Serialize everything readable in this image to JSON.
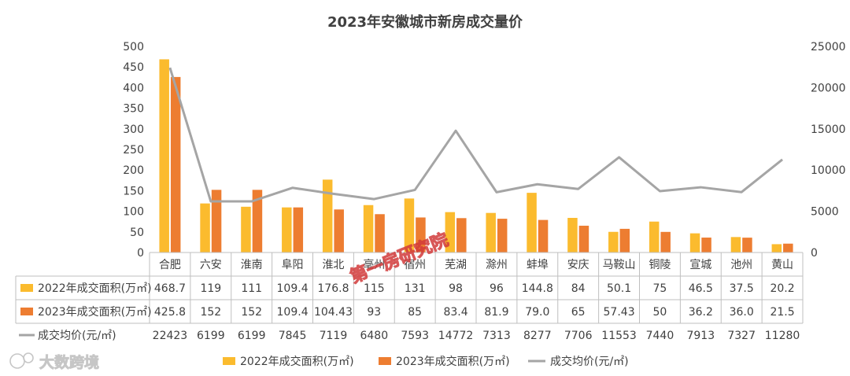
{
  "chart_data": {
    "type": "bar",
    "title": "2023年安徽城市新房成交量价",
    "categories": [
      "合肥",
      "六安",
      "淮南",
      "阜阳",
      "淮北",
      "亳州",
      "宿州",
      "芜湖",
      "滁州",
      "蚌埠",
      "安庆",
      "马鞍山",
      "铜陵",
      "宣城",
      "池州",
      "黄山"
    ],
    "y_left": {
      "ylim": [
        0,
        500
      ],
      "ticks": [
        "0",
        "50",
        "100",
        "150",
        "200",
        "250",
        "300",
        "350",
        "400",
        "450",
        "500"
      ]
    },
    "y_right": {
      "ylim": [
        0,
        25000
      ],
      "ticks": [
        "0",
        "5000",
        "10000",
        "15000",
        "20000",
        "25000"
      ]
    },
    "legend_position": "bottom",
    "grid": false,
    "series": [
      {
        "name": "2022年成交面积(万㎡)",
        "type": "bar",
        "axis": "left",
        "color": "#FBBB2E",
        "values": [
          468.7,
          119,
          111,
          109.4,
          176.8,
          115,
          131,
          98,
          96,
          144.8,
          84,
          50.1,
          75,
          46.5,
          37.5,
          20.2
        ],
        "labels": [
          "468.7",
          "119",
          "111",
          "109.4",
          "176.8",
          "115",
          "131",
          "98",
          "96",
          "144.8",
          "84",
          "50.1",
          "75",
          "46.5",
          "37.5",
          "20.2"
        ]
      },
      {
        "name": "2023年成交面积(万㎡)",
        "type": "bar",
        "axis": "left",
        "color": "#ED7D31",
        "values": [
          425.8,
          152,
          152,
          109.4,
          104.43,
          93,
          85,
          83.4,
          81.9,
          79.0,
          65,
          57.43,
          50,
          36.2,
          36.0,
          21.5
        ],
        "labels": [
          "425.8",
          "152",
          "152",
          "109.4",
          "104.43",
          "93",
          "85",
          "83.4",
          "81.9",
          "79.0",
          "65",
          "57.43",
          "50",
          "36.2",
          "36.0",
          "21.5"
        ]
      },
      {
        "name": "成交均价(元/㎡)",
        "type": "line",
        "axis": "right",
        "color": "#A5A5A5",
        "values": [
          22423,
          6199,
          6199,
          7845,
          7119,
          6480,
          7593,
          14772,
          7313,
          8277,
          7706,
          11553,
          7440,
          7913,
          7327,
          11280
        ],
        "labels": [
          "22423",
          "6199",
          "6199",
          "7845",
          "7119",
          "6480",
          "7593",
          "14772",
          "7313",
          "8277",
          "7706",
          "11553",
          "7440",
          "7913",
          "7327",
          "11280"
        ]
      }
    ]
  },
  "watermark_center": "第一房研究院",
  "watermark_logo": "大数跨境"
}
